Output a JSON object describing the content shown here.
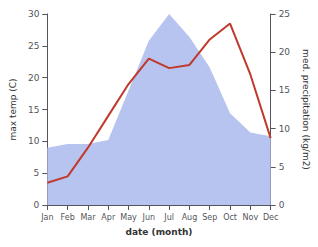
{
  "chart_data": {
    "type": "line",
    "xlabel": "date (month)",
    "ylabel": "max temp (C)",
    "y2label": "med. precipitation (kg/m2)",
    "categories": [
      "Jan",
      "Feb",
      "Mar",
      "Apr",
      "May",
      "Jun",
      "Jul",
      "Aug",
      "Sep",
      "Oct",
      "Nov",
      "Dec"
    ],
    "series": [
      {
        "type": "area",
        "axis": "y2",
        "color": "#b8c4f0",
        "values": [
          7.5,
          8.0,
          8.0,
          8.5,
          15.0,
          21.5,
          25.0,
          22.0,
          18.0,
          12.0,
          9.5,
          9.0
        ]
      },
      {
        "type": "line",
        "color": "#c0392b",
        "values": [
          3.5,
          4.5,
          9.0,
          14.0,
          19.0,
          23.0,
          21.5,
          22.0,
          26.0,
          28.5,
          20.5,
          10.5
        ]
      }
    ],
    "ylim": [
      0,
      30
    ],
    "yticks": [
      0,
      5,
      10,
      15,
      20,
      25,
      30
    ],
    "y2lim": [
      0,
      25
    ],
    "y2ticks": [
      0,
      5,
      10,
      15,
      20,
      25
    ],
    "grid": false
  }
}
